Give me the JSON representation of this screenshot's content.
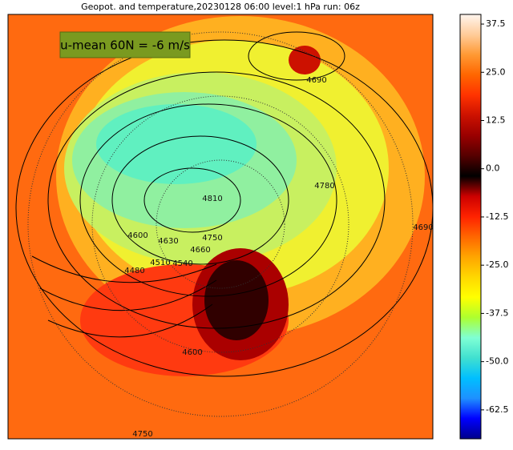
{
  "chart_data": {
    "type": "map",
    "title": "Geopot. and temperature,20230128 06:00 level:1 hPa run: 06z",
    "annotation": "u-mean 60N = -6 m/s",
    "contour_labels": [
      "4690",
      "4780",
      "4810",
      "4750",
      "4600",
      "4630",
      "4660",
      "4540",
      "4510",
      "4480",
      "4690",
      "4750",
      "4600"
    ],
    "colorbar": {
      "lim": [
        -70,
        40
      ],
      "ticks": [
        37.5,
        {
          "value": 25,
          "label": "25.0"
        },
        12.5,
        {
          "value": 0,
          "label": "0.0"
        },
        -12.5,
        {
          "value": -25,
          "label": "-25.0"
        },
        -37.5,
        {
          "value": -50,
          "label": "-50.0"
        },
        -62.5
      ],
      "colormap": [
        "#00008b",
        "#0000ff",
        "#1e90ff",
        "#00bfff",
        "#40e0d0",
        "#7fffd4",
        "#adff2f",
        "#ffff00",
        "#ffd700",
        "#ffa500",
        "#ff6600",
        "#ff2200",
        "#cc0000",
        "#000000",
        "#550000",
        "#990000",
        "#cc1100",
        "#ff3300",
        "#ff6600",
        "#ff9933",
        "#ffcc99",
        "#fff5ee"
      ]
    }
  }
}
